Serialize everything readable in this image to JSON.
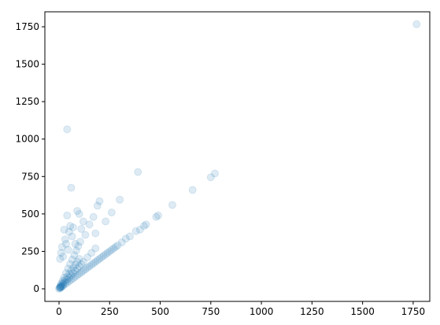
{
  "chart_data": {
    "type": "scatter",
    "x": [
      0,
      5,
      10,
      15,
      20,
      30,
      40,
      50,
      60,
      70,
      80,
      90,
      100,
      110,
      120,
      130,
      140,
      150,
      160,
      170,
      180,
      190,
      200,
      210,
      220,
      230,
      240,
      250,
      260,
      270,
      280,
      290,
      5,
      10,
      20,
      30,
      40,
      50,
      60,
      70,
      80,
      90,
      100,
      110,
      120,
      140,
      160,
      180,
      5,
      10,
      20,
      30,
      40,
      50,
      60,
      70,
      80,
      90,
      100,
      3,
      8,
      12,
      18,
      25,
      35,
      45,
      55,
      65,
      75,
      85,
      95,
      105,
      5,
      10,
      15,
      20,
      25,
      30,
      35,
      40,
      45,
      50,
      55,
      60,
      65,
      70,
      80,
      90,
      100,
      110,
      120,
      130,
      150,
      170,
      180,
      190,
      200,
      230,
      260,
      300,
      40,
      390,
      380,
      400,
      420,
      430,
      480,
      490,
      560,
      660,
      750,
      770,
      1767,
      350,
      330,
      310
    ],
    "values": [
      0,
      5,
      10,
      15,
      20,
      30,
      40,
      50,
      60,
      70,
      80,
      90,
      100,
      110,
      120,
      130,
      140,
      150,
      160,
      170,
      180,
      190,
      200,
      210,
      220,
      230,
      240,
      250,
      260,
      270,
      280,
      290,
      8,
      15,
      30,
      45,
      60,
      75,
      90,
      105,
      120,
      135,
      150,
      165,
      180,
      210,
      240,
      270,
      10,
      20,
      40,
      60,
      80,
      100,
      120,
      140,
      160,
      180,
      200,
      9,
      24,
      36,
      54,
      75,
      105,
      135,
      165,
      195,
      225,
      255,
      285,
      315,
      200,
      240,
      280,
      215,
      395,
      330,
      300,
      490,
      260,
      380,
      420,
      675,
      350,
      410,
      300,
      520,
      500,
      400,
      450,
      360,
      430,
      480,
      370,
      555,
      585,
      450,
      510,
      595,
      1065,
      780,
      385,
      395,
      420,
      430,
      480,
      490,
      560,
      660,
      745,
      770,
      1767,
      350,
      335,
      310
    ],
    "color": "#1f77b4",
    "alpha": 0.15,
    "xlim": [
      -70,
      1832
    ],
    "ylim": [
      -84,
      1850
    ],
    "xticks": [
      0,
      250,
      500,
      750,
      1000,
      1250,
      1500,
      1750
    ],
    "yticks": [
      0,
      250,
      500,
      750,
      1000,
      1250,
      1500,
      1750
    ]
  }
}
